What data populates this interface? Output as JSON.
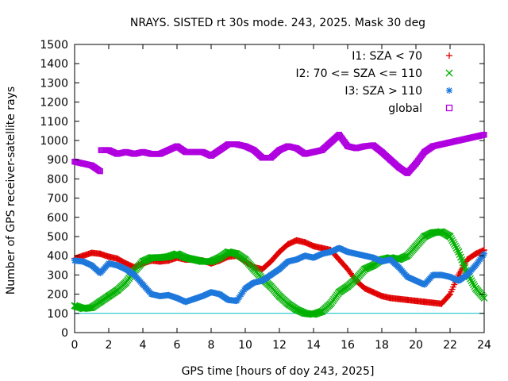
{
  "chart_data": {
    "type": "line",
    "title": "NRAYS. SISTED rt 30s mode. 243, 2025. Mask 30 deg",
    "xlabel": "GPS time [hours of doy 243, 2025]",
    "ylabel": "Number of GPS receiver-satellite rays",
    "xlim": [
      0,
      24
    ],
    "ylim": [
      0,
      1500
    ],
    "xticks": [
      "0",
      "2",
      "4",
      "6",
      "8",
      "10",
      "12",
      "14",
      "16",
      "18",
      "20",
      "22",
      "24"
    ],
    "yticks": [
      "0",
      "100",
      "200",
      "300",
      "400",
      "500",
      "600",
      "700",
      "800",
      "900",
      "1000",
      "1100",
      "1200",
      "1300",
      "1400",
      "1500"
    ],
    "grid": false,
    "legend_position": "top-right",
    "reference_line": {
      "y": 100,
      "color": "#00c0c0"
    },
    "series": [
      {
        "name": "I1: SZA < 70",
        "color": "#e00000",
        "marker": "+",
        "x": [
          0,
          0.5,
          1,
          1.5,
          2,
          2.5,
          3,
          3.5,
          4,
          4.5,
          5,
          5.5,
          6,
          6.5,
          7,
          7.5,
          8,
          8.5,
          9,
          9.5,
          10,
          10.5,
          11,
          11.5,
          12,
          12.5,
          13,
          13.5,
          14,
          14.5,
          15,
          15.5,
          16,
          16.5,
          17,
          17.5,
          18,
          18.5,
          19,
          19.5,
          20,
          20.5,
          21,
          21.5,
          22,
          22.5,
          23,
          23.5,
          24
        ],
        "values": [
          385,
          400,
          415,
          410,
          395,
          385,
          360,
          340,
          360,
          375,
          370,
          375,
          390,
          380,
          380,
          375,
          360,
          375,
          395,
          400,
          370,
          340,
          330,
          370,
          420,
          460,
          480,
          470,
          450,
          440,
          430,
          380,
          330,
          270,
          230,
          210,
          190,
          180,
          175,
          170,
          165,
          160,
          155,
          150,
          200,
          300,
          380,
          410,
          430
        ]
      },
      {
        "name": "I2: 70 <= SZA <= 110",
        "color": "#00b000",
        "marker": "x",
        "x": [
          0,
          0.5,
          1,
          1.5,
          2,
          2.5,
          3,
          3.5,
          4,
          4.5,
          5,
          5.5,
          6,
          6.5,
          7,
          7.5,
          8,
          8.5,
          9,
          9.5,
          10,
          10.5,
          11,
          11.5,
          12,
          12.5,
          13,
          13.5,
          14,
          14.5,
          15,
          15.5,
          16,
          16.5,
          17,
          17.5,
          18,
          18.5,
          19,
          19.5,
          20,
          20.5,
          21,
          21.5,
          22,
          22.5,
          23,
          23.5,
          24
        ],
        "values": [
          140,
          125,
          130,
          160,
          190,
          220,
          260,
          320,
          370,
          390,
          390,
          395,
          410,
          390,
          380,
          370,
          370,
          390,
          420,
          410,
          380,
          330,
          280,
          240,
          190,
          150,
          120,
          100,
          95,
          110,
          150,
          210,
          240,
          280,
          330,
          350,
          380,
          390,
          380,
          400,
          450,
          500,
          520,
          525,
          500,
          420,
          310,
          230,
          180
        ]
      },
      {
        "name": "I3: SZA > 110",
        "color": "#1e78dc",
        "marker": "*",
        "x": [
          0,
          0.5,
          1,
          1.5,
          2,
          2.5,
          3,
          3.5,
          4,
          4.5,
          5,
          5.5,
          6,
          6.5,
          7,
          7.5,
          8,
          8.5,
          9,
          9.5,
          10,
          10.5,
          11,
          11.5,
          12,
          12.5,
          13,
          13.5,
          14,
          14.5,
          15,
          15.5,
          16,
          16.5,
          17,
          17.5,
          18,
          18.5,
          19,
          19.5,
          20,
          20.5,
          21,
          21.5,
          22,
          22.5,
          23,
          23.5,
          24
        ],
        "values": [
          375,
          370,
          350,
          310,
          360,
          350,
          330,
          300,
          250,
          200,
          190,
          195,
          180,
          160,
          175,
          190,
          210,
          200,
          170,
          165,
          230,
          260,
          270,
          300,
          330,
          370,
          380,
          400,
          390,
          410,
          420,
          440,
          420,
          410,
          400,
          390,
          370,
          380,
          340,
          290,
          270,
          250,
          300,
          300,
          290,
          270,
          300,
          350,
          410
        ]
      },
      {
        "name": "global",
        "color": "#b000e0",
        "marker": "square",
        "x": [
          0,
          0.5,
          1,
          1.5,
          1.55,
          2,
          2.5,
          3,
          3.5,
          4,
          4.5,
          5,
          5.5,
          6,
          6.5,
          7,
          7.5,
          8,
          8.5,
          9,
          9.5,
          10,
          10.5,
          11,
          11.5,
          12,
          12.5,
          13,
          13.5,
          14,
          14.5,
          15,
          15.5,
          16,
          16.5,
          17,
          17.5,
          18,
          18.5,
          19,
          19.5,
          20,
          20.5,
          21,
          21.5,
          22,
          22.5,
          23,
          23.5,
          24
        ],
        "values": [
          890,
          880,
          870,
          840,
          950,
          950,
          930,
          940,
          930,
          940,
          930,
          930,
          950,
          970,
          940,
          940,
          940,
          920,
          950,
          980,
          980,
          970,
          950,
          910,
          910,
          950,
          970,
          960,
          930,
          940,
          950,
          990,
          1030,
          970,
          960,
          970,
          975,
          940,
          900,
          860,
          830,
          880,
          940,
          970,
          980,
          990,
          1000,
          1010,
          1020,
          1030
        ]
      }
    ]
  }
}
